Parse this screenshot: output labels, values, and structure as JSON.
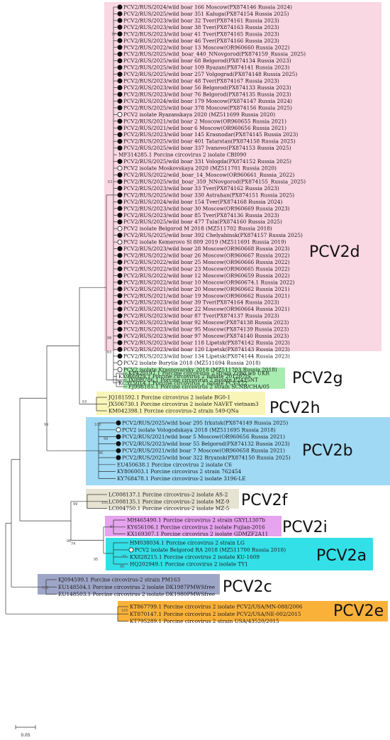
{
  "clades": [
    {
      "label": "PCV2d",
      "color": "#f9d7e3",
      "leaves": [
        {
          "text": "PCV2/RUS/2024/wild boar 166 Moscow(PX874146 Russia 2024)",
          "marker": "filled"
        },
        {
          "text": "PCV2/RUS/2025/wild boar 351 Kaluga(PX874154 Russia 2025)",
          "marker": "filled"
        },
        {
          "text": "PCV2/RUS/2023/wild boar 32 Tver(PX874161 Russia 2023)",
          "marker": "filled"
        },
        {
          "text": "PCV2/RUS/2023/wild boar 38 Tver(PX874163 Russia 2023)",
          "marker": "filled"
        },
        {
          "text": "PCV2/RUS/2023/wild boar 41 Tver(PX874165 Russia 2023)",
          "marker": "filled"
        },
        {
          "text": "PCV2/RUS/2023/wild boar 46 Tver(PX874166 Russia 2023)",
          "marker": "filled"
        },
        {
          "text": "PCV2/RUS/2022/wild boar 13 Moscow(OR960660 Russia 2022)",
          "marker": "filled"
        },
        {
          "text": "PCV2/RUS/2025/wild_boar_440_NNovgorod(PX874159_Russia_2025)",
          "marker": "filled"
        },
        {
          "text": "PCV2/RUS/2025/wild boar 68 Belgorod(PX874134 Russia 2023)",
          "marker": "filled"
        },
        {
          "text": "PCV2/RUS/2025/wild boar 109 Ryazan(PX874141 Russia 2023)",
          "marker": "filled"
        },
        {
          "text": "PCV2/RUS/2025/wild boar 257 Volgograd(PX874148 Russia 2025)",
          "marker": "filled"
        },
        {
          "text": "PCV2/RUS/2023/wild boar 48 Tver(PX874167 Russia 2023)",
          "marker": "filled"
        },
        {
          "text": "PCV2/RUS/2023/wild boar 56 Belgorod(PX874133 Russia 2023)",
          "marker": "filled"
        },
        {
          "text": "PCV2/RUS/2023/wild boar 76 Belgorod(PX874135 Russia 2023)",
          "marker": "filled"
        },
        {
          "text": "PCV2/RUS/2024/wild boar 179 Moscow(PX874147 Russia 2024)",
          "marker": "filled"
        },
        {
          "text": "PCV2/RUS/2025/wild boar 378 Moscow(PX874156 Russia 2025)",
          "marker": "filled"
        },
        {
          "text": "PCV2 isolate Ryazanskaya 2020 (MZ511699 Russia 2020)",
          "marker": "open"
        },
        {
          "text": "PCV2/RUS/2021/wild boar 2 Moscow(OR960655 Russia 2021)",
          "marker": "filled"
        },
        {
          "text": "PCV2/RUS/2021/wild boar 6 Moscow(OR960656 Russia 2021)",
          "marker": "filled"
        },
        {
          "text": "PCV2/RUS/2023/wild boar 145 Krasnodar(PX874145 Russia 2023)",
          "marker": "filled"
        },
        {
          "text": "PCV2/RUS/2025/wild boar 401 Tatarstan(PX874158 Russia 2025)",
          "marker": "filled"
        },
        {
          "text": "PCV2/RUS/2025/wild boar 337 Ivanovo(PX874153 Russia 2025)",
          "marker": "filled"
        },
        {
          "text": "MF314285.1 Porcine circovirus 2 isolate CBI090",
          "marker": "none"
        },
        {
          "text": "PCV2/RUS/2025/wild boar 331 Vologda(PX874152 Russia 2025)",
          "marker": "filled"
        },
        {
          "text": "PCV2 isolate Moskovskaya 2020 (MZ511701 Russia 2020)",
          "marker": "open"
        },
        {
          "text": "PCV2/RUS/2022/wild_boar_14_Moscow(OR960661_Russia_2022)",
          "marker": "filled"
        },
        {
          "text": "PCV2/RUS/2025/wild_boar_359_NNovgorod(PX874155_Russia_2025)",
          "marker": "filled"
        },
        {
          "text": "PCV2/RUS/2023/wild boar 33 Tver(PX874162 Russia 2023)",
          "marker": "filled"
        },
        {
          "text": "PCV2/RUS/2025/wild boar 330 Astrahan(PX874151 Russia 2025)",
          "marker": "filled"
        },
        {
          "text": "PCV2/RUS/2024/wild boar 154 Tver(PX874168 Russia 2024)",
          "marker": "filled"
        },
        {
          "text": "PCV2/RUS/2023/wild boar 30 Moscow(OR960669 Russia 2023)",
          "marker": "filled"
        },
        {
          "text": "PCV2/RUS/2023/wild boar 85 Tver(PX874136 Russia 2023)",
          "marker": "filled"
        },
        {
          "text": "PCV2/RUS/2025/wild boar 477 Tula(PX874160 Russia 2025)",
          "marker": "filled"
        },
        {
          "text": "PCV2 isolate Belgorod M 2018 (MZ511702 Russia 2018)",
          "marker": "open"
        },
        {
          "text": "PCV2/RUS/2025/wild boar 392 Chelyabinsk(PX874157 Russia 2025)",
          "marker": "filled"
        },
        {
          "text": "PCV2 isolate Kemerovo Sl 809 2019 (MZ511691 Russia 2019)",
          "marker": "open"
        },
        {
          "text": "PCV2/RUS/2023/wild boar 28 Moscow(OR960668 Russia 2023)",
          "marker": "filled"
        },
        {
          "text": "PCV2/RUS/2022/wild boar 26 Moscow(OR960667 Russia 2022)",
          "marker": "filled"
        },
        {
          "text": "PCV2/RUS/2022/wild boar 25 Moscow(OR960666 Russia 2022)",
          "marker": "filled"
        },
        {
          "text": "PCV2/RUS/2022/wild boar 23 Moscow(OR960665 Russia 2022)",
          "marker": "filled"
        },
        {
          "text": "PCV2/RUS/2022/wild boar 12 Moscow(OR960659 Russia 2022)",
          "marker": "filled"
        },
        {
          "text": "PCV2/RUS/2022/wild boar 10 Moscow(OR960674.1 Russia 2022)",
          "marker": "filled"
        },
        {
          "text": "PCV2/RUS/2021/wild boar 20 Moscow(OR960662 Russia 2021)",
          "marker": "filled"
        },
        {
          "text": "PCV2/RUS/2021/wild boar 19 Moscow(OR960662 Russia 2021)",
          "marker": "filled"
        },
        {
          "text": "PCV2/RUS/2023/wild boar 39 Tver(PX874164 Russia 2023)",
          "marker": "filled"
        },
        {
          "text": "PCV2/RUS/2021/wild boar 22 Moscow(OR960664 Russia 2021)",
          "marker": "filled"
        },
        {
          "text": "PCV2/RUS/2023/wild boar 87 Tver(PX874137 Russia 2023)",
          "marker": "filled"
        },
        {
          "text": "PCV2/RUS/2023/wild boar 92 Moscow(PX874138 Russia 2023)",
          "marker": "filled"
        },
        {
          "text": "PCV2/RUS/2023/wild boar 95 Moscow(PX874139 Russia 2023)",
          "marker": "filled"
        },
        {
          "text": "PCV2/RUS/2023/wild boar 97 Moscow(PX874140 Russia 2023)",
          "marker": "filled"
        },
        {
          "text": "PCV2/RUS/2023/wild boar 118 Lipetsk(PX874142 Russia 2023)",
          "marker": "filled"
        },
        {
          "text": "PCV2/RUS/2023/wild boar 120 Lipetsk(PX874143 Russia 2023)",
          "marker": "filled"
        },
        {
          "text": "PCV2/RUS/2023/wild boar 134 Lipetsk(PX874144 Russia 2023)",
          "marker": "filled"
        },
        {
          "text": "PCV2 isolate Burytia 2018 (MZ511694 Russia 2018)",
          "marker": "open"
        },
        {
          "text": "PCV2 isolate Krasnoyarsky 2018 (MZ511703 Russia 2018)",
          "marker": "open"
        },
        {
          "text": "KX960929.1 Porcine circovirus 2 isolate 201207JS",
          "marker": "none"
        },
        {
          "text": "KC515014.1 Porcine circovirus 2 isolate PCV-Y22",
          "marker": "none"
        }
      ]
    },
    {
      "label": "PCV2g",
      "color": "#a8ecb0",
      "leaves": [
        {
          "text": "KP420197.1 Porcine circovirus 2 strain ZrBd wb UKR",
          "marker": "none"
        },
        {
          "text": "JX099786.1 Porcine circovirus 2 isolate P2425NT",
          "marker": "none"
        },
        {
          "text": "FJ998185.1 Porcine circovirus 2 strain SCNB/CHA/05",
          "marker": "none"
        }
      ]
    },
    {
      "label": "PCV2h",
      "color": "#f9f5b8",
      "leaves": [
        {
          "text": "JQ181592.1 Porcine circovirus 2 isolate BG0-1",
          "marker": "none"
        },
        {
          "text": "JX506730.1 Porcine circovirus 2 isolate NAVET vietnam3",
          "marker": "none"
        },
        {
          "text": "KM042398.1 Porcine circovirus-2 strain 549-QNa",
          "marker": "none"
        }
      ]
    },
    {
      "label": "PCV2b",
      "color": "#9fd9f4",
      "leaves": [
        {
          "text": "PCV2/RUS/2025/wild boar 295 Irkutsk(PX874149 Russia 2025)",
          "marker": "filled"
        },
        {
          "text": "PCV2 isolate Vologodskaya 2018 (MZ511695 Russia 2018)",
          "marker": "open"
        },
        {
          "text": "PCV2/RUS/2021/wild boar 5 Moscow(OR960656 Russia 2021)",
          "marker": "filled"
        },
        {
          "text": "PCV2/RUS/2023/wild boar 55 Belgorod(PX874132 Russia 2023)",
          "marker": "filled"
        },
        {
          "text": "PCV2/RUS/2021/wild boar 7 Moscow(OR960658 Russia 2021)",
          "marker": "filled"
        },
        {
          "text": "PCV2/RUS/2025/wild boar 322 Bryansk(PX874150 Russia 2025)",
          "marker": "filled"
        },
        {
          "text": "EU450638.1 Porcine circovirus 2 isolate C6",
          "marker": "none"
        },
        {
          "text": "KY806003.1 Porcine circovirus 2 strain 762454",
          "marker": "none"
        },
        {
          "text": "KY768478.1 Porcine circovirus-2 isolate 3196-LE",
          "marker": "none"
        }
      ]
    },
    {
      "label": "PCV2f",
      "color": "#e7e3d2",
      "leaves": [
        {
          "text": "LC008137.1 Porcine circovirus-2 isolate AS-2",
          "marker": "none"
        },
        {
          "text": "LC008135.1 Porcine circovirus-2 isolate MZ-9",
          "marker": "none"
        },
        {
          "text": "LC004750.1 Porcine circovirus-2 isolate MZ-5",
          "marker": "none"
        }
      ]
    },
    {
      "label": "PCV2i",
      "color": "#e6a3ee",
      "leaves": [
        {
          "text": "MH465490.1 Porcine circovirus 2 strain GXYL1307b",
          "marker": "none"
        },
        {
          "text": "KY656106.1 Porcine circovirus 2 isolate Fujian-2016",
          "marker": "none"
        },
        {
          "text": "KX169307.1 Porcine circovirus 2 isolate GDMZF2A11",
          "marker": "none"
        }
      ]
    },
    {
      "label": "PCV2a",
      "color": "#33e0e8",
      "leaves": [
        {
          "text": "HM038034.1 Porcine circovirus 2 strain LG",
          "marker": "none"
        },
        {
          "text": "PCV2 isolate Belgorod RA 2018 (MZ511700 Russia 2018)",
          "marker": "open"
        },
        {
          "text": "KX828215.1 Porcine circovirus 2 isolate KU-1609",
          "marker": "none"
        },
        {
          "text": "HQ202949.1 Porcine circovirus 2 isolate TY1",
          "marker": "none"
        }
      ]
    },
    {
      "label": "PCV2c",
      "color": "#9ea6c8",
      "leaves": [
        {
          "text": "KJ094599.1 Porcine circovirus-2 strain PM163",
          "marker": "none"
        },
        {
          "text": "EU148504.1 Porcine circovirus 2 isolate DK1987PMWSfree",
          "marker": "none"
        },
        {
          "text": "EU148503.1 Porcine circovirus 2 isolate DK1980PMWSfree",
          "marker": "none"
        }
      ]
    },
    {
      "label": "PCV2e",
      "color": "#f9b13a",
      "leaves": [
        {
          "text": "KT867799.1 Porcine circovirus 2 isolate PCV2/USA/MN-088/2006",
          "marker": "none"
        },
        {
          "text": "KT870147.1 Porcine circovirus 2 isolate PCV2/USA/NE-002/2015",
          "marker": "none"
        },
        {
          "text": "KT795289.1 Porcine circovirus 2 strain USA/43520/2015",
          "marker": "none"
        }
      ]
    }
  ],
  "bootstrap": [
    "77",
    "63",
    "98",
    "63",
    "96",
    "99",
    "63",
    "100",
    "99",
    "96",
    "100",
    "99",
    "74",
    "97",
    "95",
    "77",
    "96",
    "100",
    "100",
    "99"
  ],
  "scale_bar": {
    "label": "0.05"
  }
}
